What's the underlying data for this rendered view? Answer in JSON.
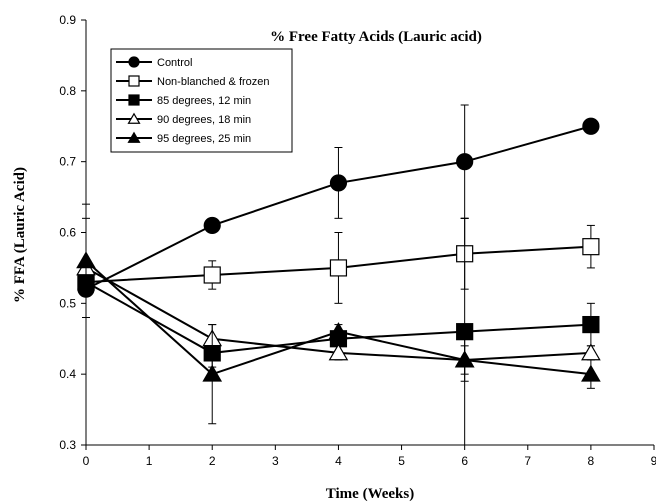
{
  "chart_data": {
    "type": "line",
    "title": "% Free Fatty Acids (Lauric acid)",
    "xlabel": "Time (Weeks)",
    "ylabel": "% FFA (Lauric Acid)",
    "xlim": [
      0,
      9
    ],
    "ylim": [
      0.3,
      0.9
    ],
    "xticks": [
      "0",
      "1",
      "2",
      "3",
      "4",
      "5",
      "6",
      "7",
      "8",
      "9"
    ],
    "yticks": [
      "0.3",
      "0.4",
      "0.5",
      "0.6",
      "0.7",
      "0.8",
      "0.9"
    ],
    "grid": false,
    "legend_position": "top-left",
    "series": [
      {
        "name": "Control",
        "marker": "circle",
        "filled": true,
        "marker_color": "#000000",
        "x": [
          0,
          2,
          4,
          6,
          8
        ],
        "y": [
          0.52,
          0.61,
          0.67,
          0.7,
          0.75
        ],
        "err": [
          0,
          0,
          0.05,
          0.08,
          0
        ]
      },
      {
        "name": "Non-blanched & frozen",
        "marker": "square",
        "filled": false,
        "marker_color": "#000000",
        "x": [
          0,
          2,
          4,
          6,
          8
        ],
        "y": [
          0.53,
          0.54,
          0.55,
          0.57,
          0.58
        ],
        "err": [
          0,
          0.02,
          0.05,
          0.05,
          0.03
        ]
      },
      {
        "name": "85 degrees, 12 min",
        "marker": "square",
        "filled": true,
        "marker_color": "#000000",
        "x": [
          0,
          2,
          4,
          6,
          8
        ],
        "y": [
          0.53,
          0.43,
          0.45,
          0.46,
          0.47
        ],
        "err": [
          0,
          0.02,
          0.01,
          0.16,
          0.03
        ]
      },
      {
        "name": "90 degrees, 18 min",
        "marker": "triangle",
        "filled": false,
        "marker_color": "#000000",
        "x": [
          0,
          2,
          4,
          6,
          8
        ],
        "y": [
          0.55,
          0.45,
          0.43,
          0.42,
          0.43
        ],
        "err": [
          0.07,
          0.02,
          0.01,
          0.02,
          0.01
        ]
      },
      {
        "name": "95 degrees, 25 min",
        "marker": "triangle",
        "filled": true,
        "marker_color": "#000000",
        "x": [
          0,
          2,
          4,
          6,
          8
        ],
        "y": [
          0.56,
          0.4,
          0.46,
          0.42,
          0.4
        ],
        "err": [
          0.08,
          0.07,
          0.01,
          0.03,
          0.02
        ]
      }
    ]
  }
}
